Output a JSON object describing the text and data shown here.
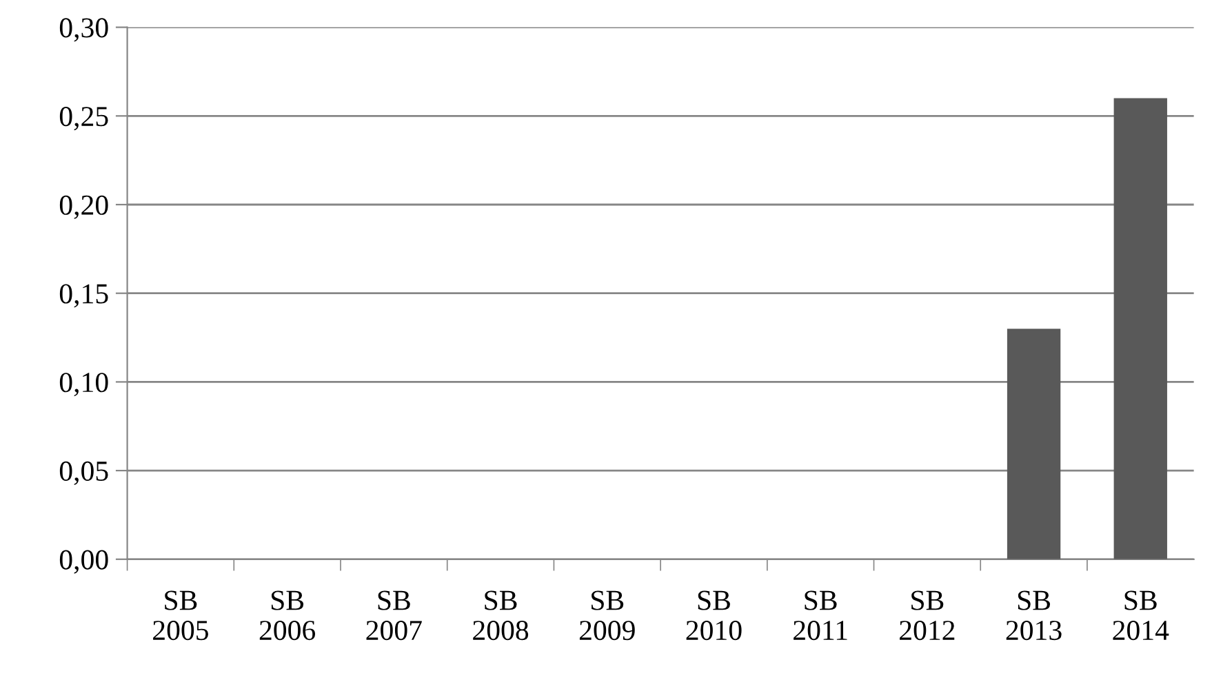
{
  "chart_data": {
    "type": "bar",
    "categories": [
      "SB 2005",
      "SB 2006",
      "SB 2007",
      "SB 2008",
      "SB 2009",
      "SB 2010",
      "SB 2011",
      "SB 2012",
      "SB 2013",
      "SB 2014"
    ],
    "values": [
      0,
      0,
      0,
      0,
      0,
      0,
      0,
      0,
      0.13,
      0.26
    ],
    "color": "#595959",
    "ylim": [
      0,
      0.3
    ],
    "yticks": [
      {
        "value": 0,
        "label": "0,00"
      },
      {
        "value": 0.05,
        "label": "0,05"
      },
      {
        "value": 0.1,
        "label": "0,10"
      },
      {
        "value": 0.15,
        "label": "0,15"
      },
      {
        "value": 0.2,
        "label": "0,20"
      },
      {
        "value": 0.25,
        "label": "0,25"
      },
      {
        "value": 0.3,
        "label": "0,30"
      }
    ],
    "grid": "y",
    "legend": false
  }
}
